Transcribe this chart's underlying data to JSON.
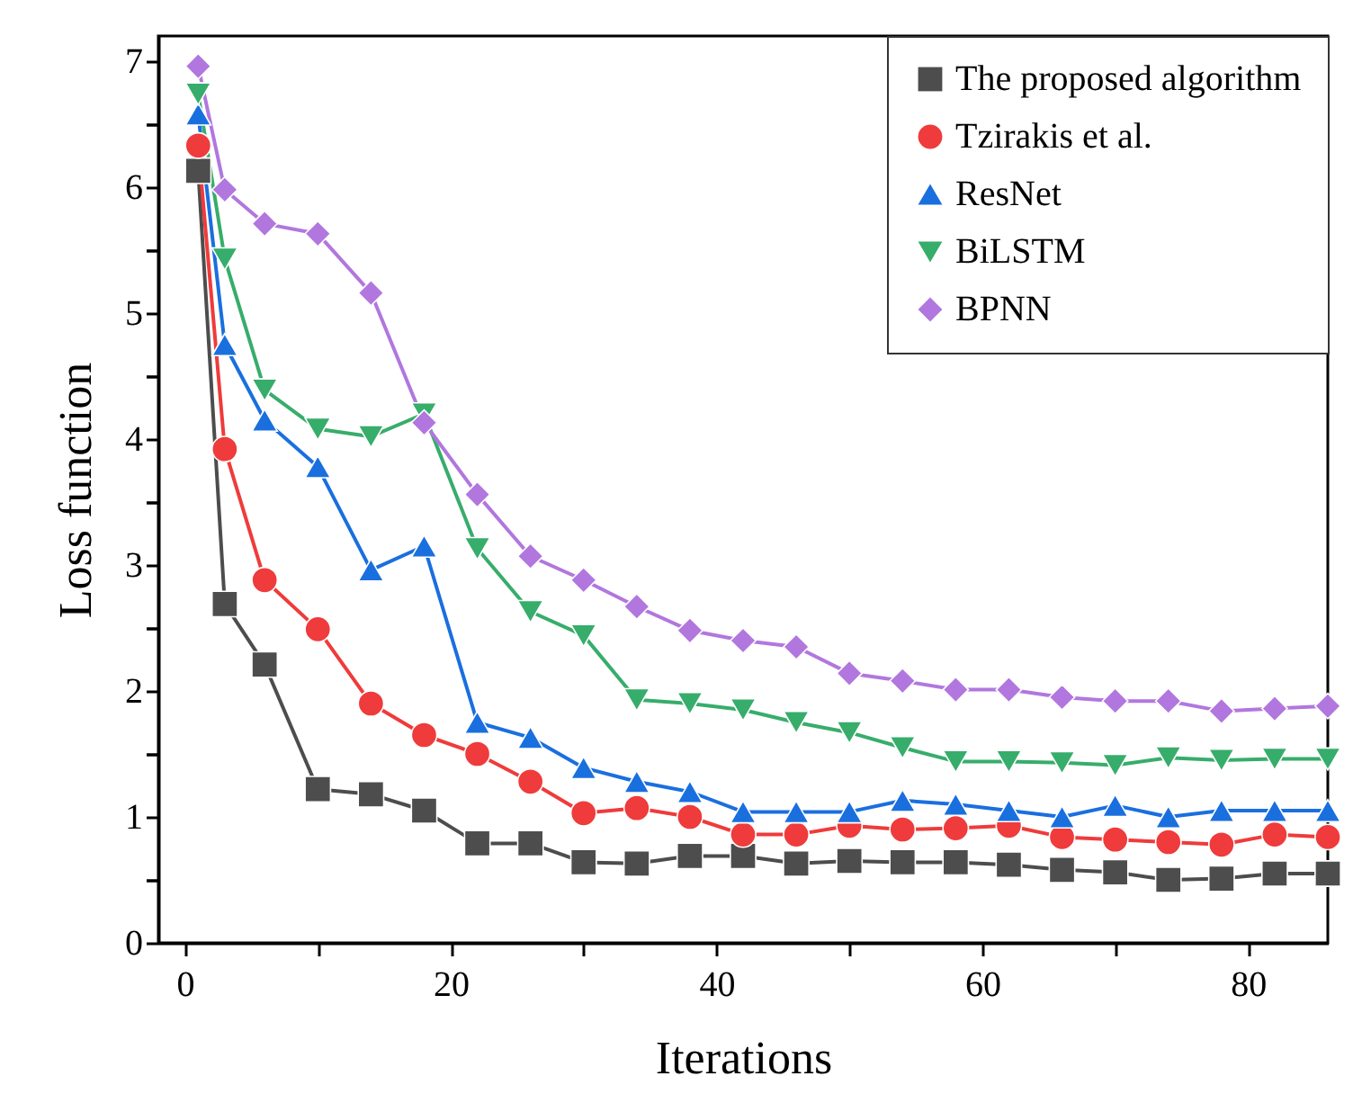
{
  "chart_data": {
    "type": "line",
    "xlabel": "Iterations",
    "ylabel": "Loss function",
    "x": [
      1,
      3,
      6,
      10,
      14,
      18,
      22,
      26,
      30,
      34,
      38,
      42,
      46,
      50,
      54,
      58,
      62,
      66,
      70,
      74,
      78,
      82,
      86
    ],
    "series": [
      {
        "name": "The proposed algorithm",
        "color": "#4d4d4d",
        "marker": "square",
        "values": [
          6.13,
          2.69,
          2.21,
          1.22,
          1.18,
          1.05,
          0.79,
          0.79,
          0.64,
          0.63,
          0.69,
          0.69,
          0.63,
          0.65,
          0.64,
          0.64,
          0.62,
          0.58,
          0.56,
          0.5,
          0.51,
          0.55,
          0.55
        ]
      },
      {
        "name": "Tzirakis et al.",
        "color": "#ef3b3b",
        "marker": "circle",
        "values": [
          6.33,
          3.92,
          2.88,
          2.49,
          1.9,
          1.65,
          1.5,
          1.28,
          1.03,
          1.07,
          1.0,
          0.86,
          0.86,
          0.93,
          0.9,
          0.91,
          0.93,
          0.84,
          0.82,
          0.8,
          0.78,
          0.86,
          0.84
        ]
      },
      {
        "name": "ResNet",
        "color": "#1a6fdf",
        "marker": "triangle",
        "values": [
          6.58,
          4.75,
          4.15,
          3.78,
          2.96,
          3.15,
          1.75,
          1.63,
          1.39,
          1.28,
          1.2,
          1.04,
          1.04,
          1.04,
          1.13,
          1.1,
          1.05,
          1.0,
          1.09,
          1.0,
          1.05,
          1.05,
          1.05
        ]
      },
      {
        "name": "BiLSTM",
        "color": "#37ad6b",
        "marker": "triangle-down",
        "values": [
          6.74,
          5.43,
          4.39,
          4.08,
          4.02,
          4.2,
          3.13,
          2.63,
          2.44,
          1.93,
          1.9,
          1.85,
          1.75,
          1.67,
          1.55,
          1.44,
          1.44,
          1.43,
          1.41,
          1.47,
          1.45,
          1.46,
          1.46
        ]
      },
      {
        "name": "BPNN",
        "color": "#b177de",
        "marker": "diamond",
        "values": [
          6.96,
          5.98,
          5.71,
          5.63,
          5.16,
          4.13,
          3.56,
          3.07,
          2.88,
          2.67,
          2.48,
          2.4,
          2.35,
          2.14,
          2.08,
          2.01,
          2.01,
          1.95,
          1.92,
          1.92,
          1.84,
          1.86,
          1.88
        ]
      }
    ],
    "xlim": [
      -2,
      86
    ],
    "xticks": [
      0,
      {
        "value": 10,
        "label": null
      },
      20,
      {
        "value": 30,
        "label": null
      },
      40,
      {
        "value": 50,
        "label": null
      },
      60,
      {
        "value": 70,
        "label": null
      },
      80
    ],
    "ylim": [
      0,
      7.2
    ],
    "yticks": [
      0,
      {
        "value": 0.5,
        "label": null
      },
      1,
      {
        "value": 1.5,
        "label": null
      },
      2,
      {
        "value": 2.5,
        "label": null
      },
      3,
      {
        "value": 3.5,
        "label": null
      },
      4,
      {
        "value": 4.5,
        "label": null
      },
      5,
      {
        "value": 5.5,
        "label": null
      },
      6,
      {
        "value": 6.5,
        "label": null
      },
      7
    ],
    "legend": "top right",
    "grid": false,
    "line_style": "solid"
  }
}
